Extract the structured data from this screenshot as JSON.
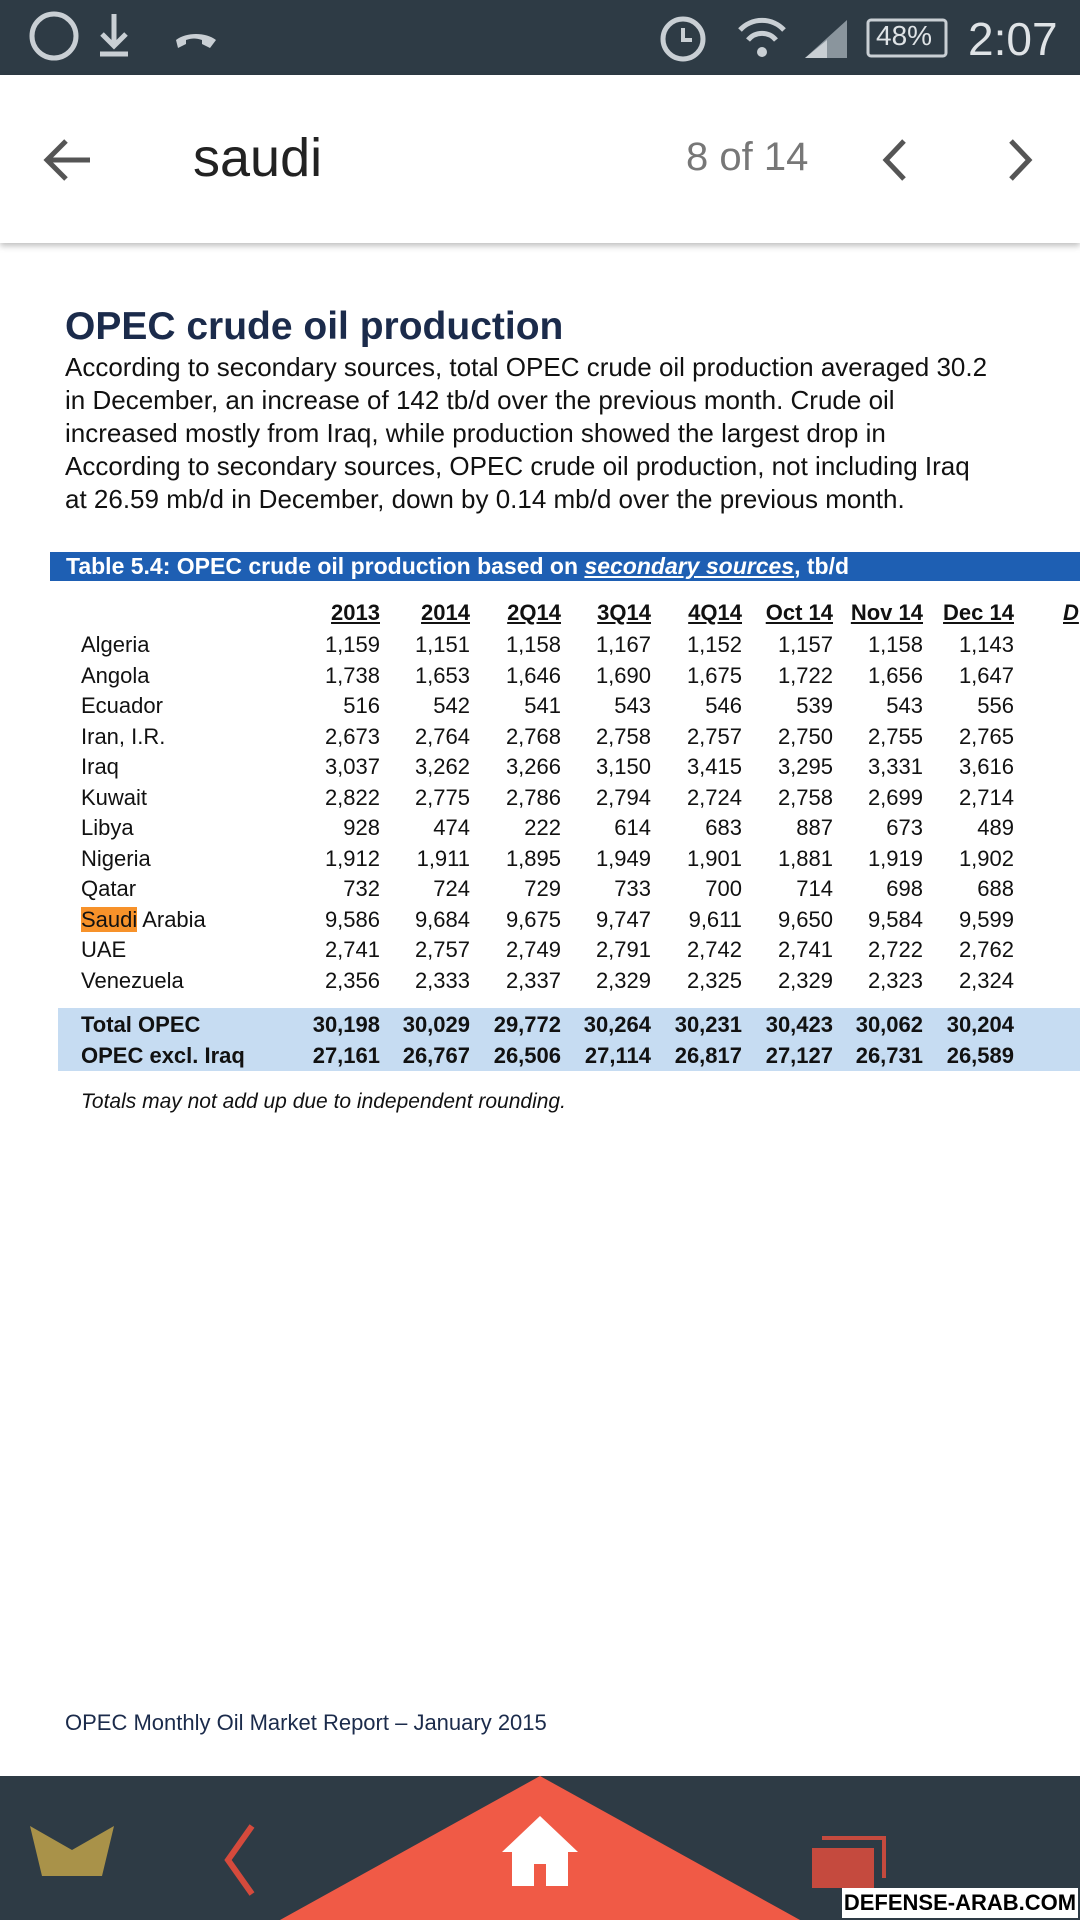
{
  "status_bar": {
    "battery": "48%",
    "time": "2:07"
  },
  "search_bar": {
    "query": "saudi",
    "match_count": "8 of 14"
  },
  "document": {
    "heading": "OPEC crude oil production",
    "paragraph_lines": [
      "According to secondary sources, total OPEC crude oil production averaged 30.2",
      "in December, an increase of 142 tb/d over the previous month. Crude oil",
      "increased mostly from Iraq, while production showed the largest drop in",
      "According to secondary sources, OPEC crude oil production, not including Iraq",
      "at 26.59 mb/d in December, down by 0.14 mb/d over the previous month."
    ],
    "table": {
      "title_start": "Table 5.4: OPEC crude oil production based on",
      "title_link": "secondary sources",
      "title_end": ", tb/d",
      "headers": [
        "2013",
        "2014",
        "2Q14",
        "3Q14",
        "4Q14",
        "Oct 14",
        "Nov 14",
        "Dec 14",
        "D"
      ],
      "rows": [
        {
          "name": "Algeria",
          "values": [
            "1,159",
            "1,151",
            "1,158",
            "1,167",
            "1,152",
            "1,157",
            "1,158",
            "1,143"
          ]
        },
        {
          "name": "Angola",
          "values": [
            "1,738",
            "1,653",
            "1,646",
            "1,690",
            "1,675",
            "1,722",
            "1,656",
            "1,647"
          ]
        },
        {
          "name": "Ecuador",
          "values": [
            "516",
            "542",
            "541",
            "543",
            "546",
            "539",
            "543",
            "556"
          ]
        },
        {
          "name": "Iran, I.R.",
          "values": [
            "2,673",
            "2,764",
            "2,768",
            "2,758",
            "2,757",
            "2,750",
            "2,755",
            "2,765"
          ]
        },
        {
          "name": "Iraq",
          "values": [
            "3,037",
            "3,262",
            "3,266",
            "3,150",
            "3,415",
            "3,295",
            "3,331",
            "3,616"
          ]
        },
        {
          "name": "Kuwait",
          "values": [
            "2,822",
            "2,775",
            "2,786",
            "2,794",
            "2,724",
            "2,758",
            "2,699",
            "2,714"
          ]
        },
        {
          "name": "Libya",
          "values": [
            "928",
            "474",
            "222",
            "614",
            "683",
            "887",
            "673",
            "489"
          ]
        },
        {
          "name": "Nigeria",
          "values": [
            "1,912",
            "1,911",
            "1,895",
            "1,949",
            "1,901",
            "1,881",
            "1,919",
            "1,902"
          ]
        },
        {
          "name": "Qatar",
          "values": [
            "732",
            "724",
            "729",
            "733",
            "700",
            "714",
            "698",
            "688"
          ]
        },
        {
          "highlight": "Saudi",
          "name": "Arabia",
          "values": [
            "9,586",
            "9,684",
            "9,675",
            "9,747",
            "9,611",
            "9,650",
            "9,584",
            "9,599"
          ]
        },
        {
          "name": "UAE",
          "values": [
            "2,741",
            "2,757",
            "2,749",
            "2,791",
            "2,742",
            "2,741",
            "2,722",
            "2,762"
          ]
        },
        {
          "name": "Venezuela",
          "values": [
            "2,356",
            "2,333",
            "2,337",
            "2,329",
            "2,325",
            "2,329",
            "2,323",
            "2,324"
          ]
        }
      ],
      "totals": [
        {
          "name": "Total  OPEC",
          "values": [
            "30,198",
            "30,029",
            "29,772",
            "30,264",
            "30,231",
            "30,423",
            "30,062",
            "30,204"
          ]
        },
        {
          "name": "OPEC excl. Iraq",
          "values": [
            "27,161",
            "26,767",
            "26,506",
            "27,114",
            "26,817",
            "27,127",
            "26,731",
            "26,589"
          ]
        }
      ],
      "note": "Totals may not add up due to independent rounding."
    },
    "footer": "OPEC Monthly Oil Market Report – January 2015"
  },
  "watermark": "DEFENSE-ARAB.COM"
}
